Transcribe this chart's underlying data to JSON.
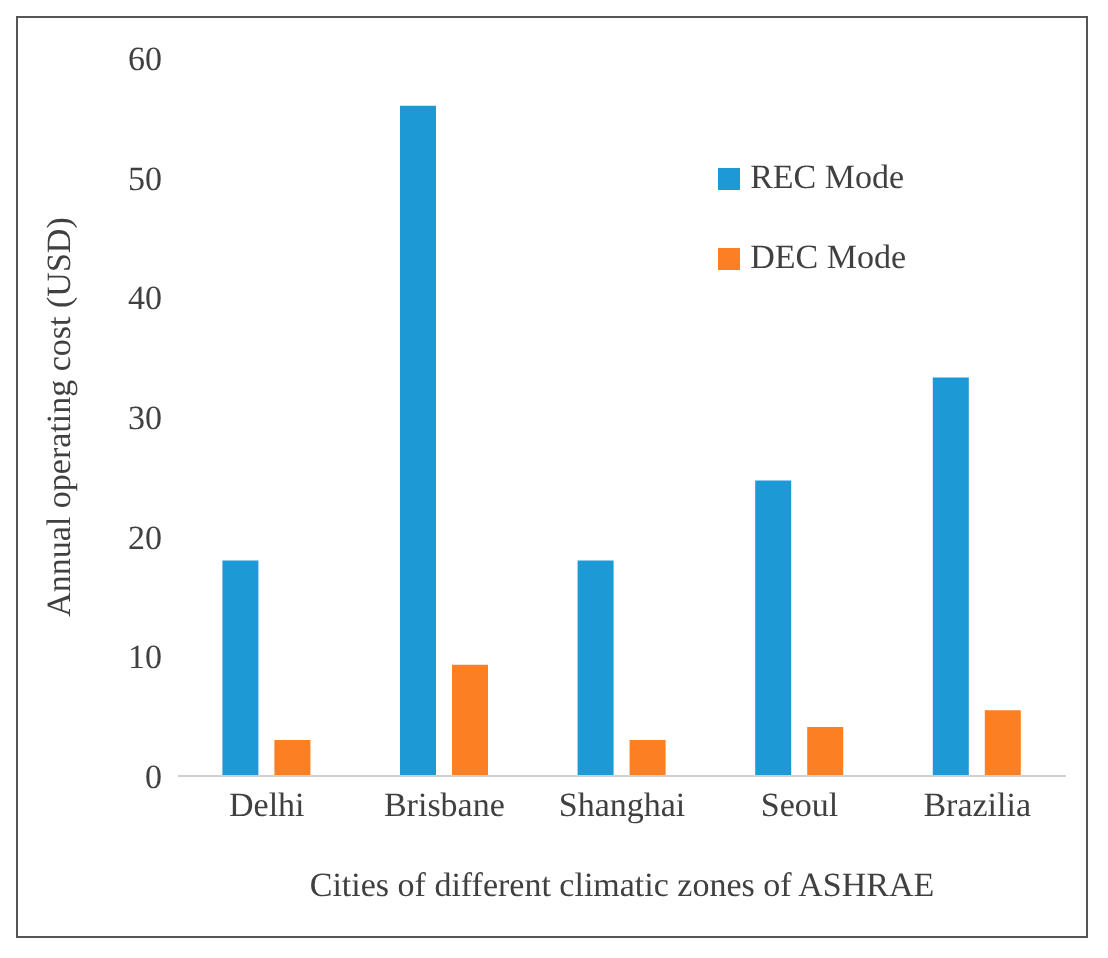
{
  "chart_data": {
    "type": "bar",
    "xlabel": "Cities of different  climatic zones of ASHRAE",
    "ylabel": "Annual operating cost (USD)",
    "categories": [
      "Delhi",
      "Brisbane",
      "Shanghai",
      "Seoul",
      "Brazilia"
    ],
    "series": [
      {
        "name": "REC Mode",
        "color": "#1b9ad6",
        "values": [
          18,
          56,
          18,
          24.7,
          33.3
        ]
      },
      {
        "name": "DEC Mode",
        "color": "#fd7f23",
        "values": [
          3,
          9.3,
          3,
          4.1,
          5.5
        ]
      }
    ],
    "ylim": [
      0,
      60
    ],
    "yticks": [
      0,
      10,
      20,
      30,
      40,
      50,
      60
    ],
    "grid": false,
    "legend": "top right"
  }
}
